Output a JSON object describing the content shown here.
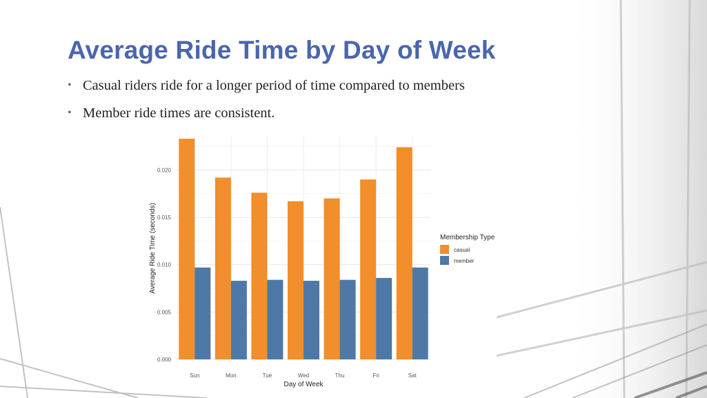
{
  "slide": {
    "title": "Average Ride Time by Day of Week",
    "bullets": [
      "Casual riders ride for a longer period of time compared to members",
      "Member ride times are consistent."
    ]
  },
  "chart_data": {
    "type": "bar",
    "categories": [
      "Sun",
      "Mon",
      "Tue",
      "Wed",
      "Thu",
      "Fri",
      "Sat"
    ],
    "series": [
      {
        "name": "casual",
        "color": "#f28e2b",
        "values": [
          0.0233,
          0.0192,
          0.0176,
          0.0167,
          0.017,
          0.019,
          0.0224
        ]
      },
      {
        "name": "member",
        "color": "#4e79a7",
        "values": [
          0.0097,
          0.0083,
          0.0084,
          0.0083,
          0.0084,
          0.0086,
          0.0097
        ]
      }
    ],
    "xlabel": "Day of Week",
    "ylabel": "Average Ride Time (seconds)",
    "ylim": [
      0,
      0.0236
    ],
    "yticks": [
      "0.000",
      "0.005",
      "0.010",
      "0.015",
      "0.020"
    ],
    "ytick_values": [
      0,
      0.005,
      0.01,
      0.015,
      0.02
    ],
    "legend_title": "Membership Type",
    "legend_position": "right",
    "grid": true
  }
}
